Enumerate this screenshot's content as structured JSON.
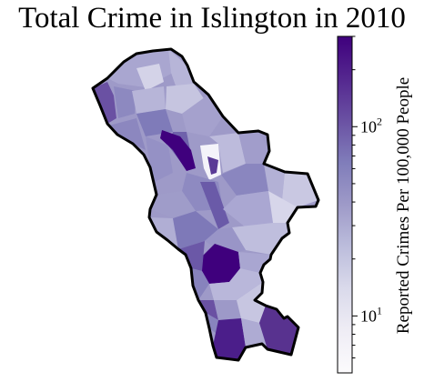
{
  "title": "Total Crime in Islington in 2010",
  "colorbar": {
    "label": "Reported Crimes Per 100,000 People",
    "scale": "log",
    "range": [
      5,
      300
    ],
    "major_ticks": [
      {
        "value": 10,
        "base": "10",
        "exp": "1"
      },
      {
        "value": 100,
        "base": "10",
        "exp": "2"
      }
    ],
    "minor_ticks": [
      6,
      7,
      8,
      9,
      20,
      30,
      40,
      50,
      60,
      70,
      80,
      90,
      200,
      300
    ],
    "colors": [
      "#fcfbfd",
      "#efedf5",
      "#dadaeb",
      "#bcbddc",
      "#9e9ac8",
      "#807dba",
      "#6a51a3",
      "#54278f",
      "#3f007d"
    ]
  },
  "map": {
    "region": "Islington",
    "outline_color": "#000000",
    "fill_levels": [
      0.12,
      0.3,
      0.45,
      0.55,
      0.65,
      0.78,
      0.9,
      1.0
    ]
  }
}
